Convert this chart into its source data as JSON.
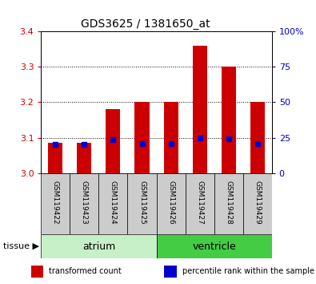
{
  "title": "GDS3625 / 1381650_at",
  "samples": [
    "GSM119422",
    "GSM119423",
    "GSM119424",
    "GSM119425",
    "GSM119426",
    "GSM119427",
    "GSM119428",
    "GSM119429"
  ],
  "transformed_count": [
    3.085,
    3.085,
    3.18,
    3.2,
    3.2,
    3.36,
    3.3,
    3.2
  ],
  "percentile_values": [
    3.082,
    3.082,
    3.095,
    3.083,
    3.083,
    3.1,
    3.098,
    3.083
  ],
  "ylim_left": [
    3.0,
    3.4
  ],
  "ylim_right": [
    0,
    100
  ],
  "left_ticks": [
    3.0,
    3.1,
    3.2,
    3.3,
    3.4
  ],
  "right_ticks": [
    0,
    25,
    50,
    75,
    100
  ],
  "right_tick_labels": [
    "0",
    "25",
    "50",
    "75",
    "100%"
  ],
  "left_tick_color": "#cc0000",
  "right_tick_color": "#0000cc",
  "bar_color": "#cc0000",
  "blue_marker_color": "#0000cc",
  "groups": [
    {
      "label": "atrium",
      "start": 0,
      "end": 4,
      "color": "#c8f0c8"
    },
    {
      "label": "ventricle",
      "start": 4,
      "end": 8,
      "color": "#44cc44"
    }
  ],
  "tissue_label": "tissue",
  "legend_items": [
    {
      "label": "transformed count",
      "color": "#cc0000"
    },
    {
      "label": "percentile rank within the sample",
      "color": "#0000cc"
    }
  ],
  "sample_bg_color": "#cccccc",
  "bar_width": 0.5
}
